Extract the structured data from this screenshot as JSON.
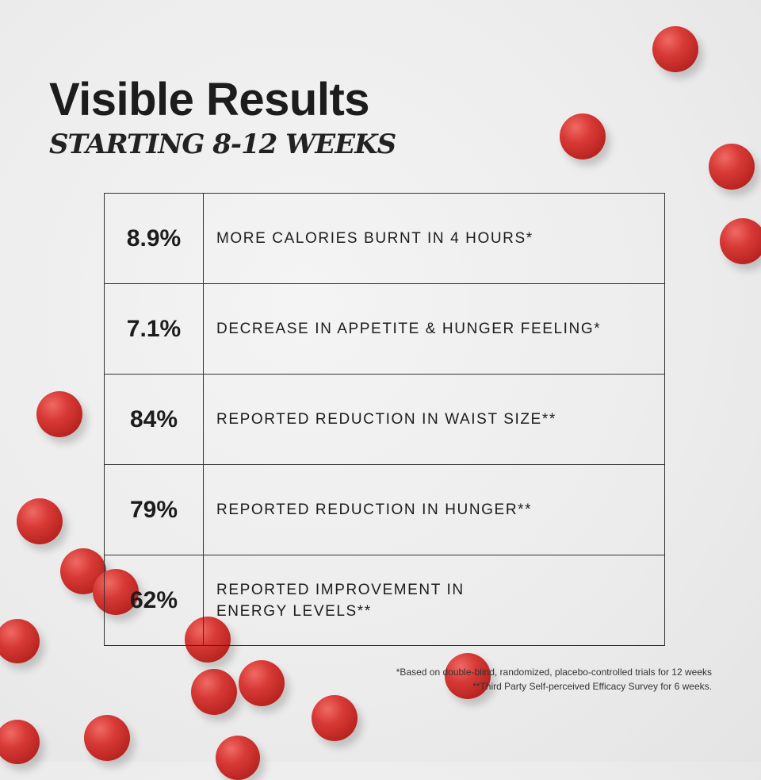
{
  "heading": {
    "title": "Visible Results",
    "subtitle": "STARTING 8-12 WEEKS"
  },
  "results": [
    {
      "value": "8.9%",
      "label": "MORE CALORIES BURNT IN 4 HOURS*"
    },
    {
      "value": "7.1%",
      "label": "DECREASE IN APPETITE & HUNGER FEELING*"
    },
    {
      "value": "84%",
      "label": "REPORTED REDUCTION IN WAIST SIZE**"
    },
    {
      "value": "79%",
      "label": "REPORTED REDUCTION IN HUNGER**"
    },
    {
      "value": "62%",
      "label": "REPORTED IMPROVEMENT IN\nENERGY LEVELS**"
    }
  ],
  "footnotes": [
    "*Based on double-blind, randomized, placebo-controlled trials for 12 weeks",
    "**Third Party Self-perceived Efficacy Survey for 6 weeks."
  ],
  "colors": {
    "ball": "#d83a36",
    "text": "#1c1c1c",
    "background": "#ececec"
  }
}
